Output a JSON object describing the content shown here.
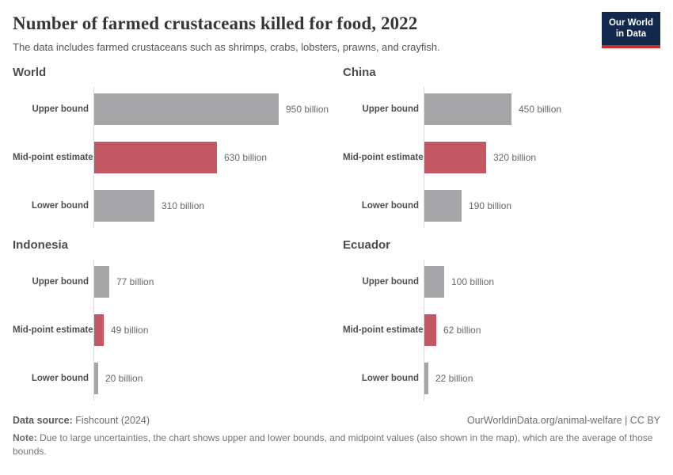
{
  "header": {
    "title": "Number of farmed crustaceans killed for food, 2022",
    "subtitle": "The data includes farmed crustaceans such as shrimps, crabs, lobsters, prawns, and crayfish.",
    "logo_line1": "Our World",
    "logo_line2": "in Data"
  },
  "chart_data": {
    "type": "bar",
    "orientation": "horizontal",
    "unit": "billion",
    "x_max": 950,
    "grid": false,
    "legend": false,
    "categories": [
      "Upper bound",
      "Mid-point estimate",
      "Lower bound"
    ],
    "bar_colors": {
      "bound": "#a5a5a8",
      "midpoint": "#c25864"
    },
    "panels": [
      {
        "title": "World",
        "values": [
          950,
          630,
          310
        ],
        "labels": [
          "950 billion",
          "630 billion",
          "310 billion"
        ]
      },
      {
        "title": "China",
        "values": [
          450,
          320,
          190
        ],
        "labels": [
          "450 billion",
          "320 billion",
          "190 billion"
        ]
      },
      {
        "title": "Indonesia",
        "values": [
          77,
          49,
          20
        ],
        "labels": [
          "77 billion",
          "49 billion",
          "20 billion"
        ]
      },
      {
        "title": "Ecuador",
        "values": [
          100,
          62,
          22
        ],
        "labels": [
          "100 billion",
          "62 billion",
          "22 billion"
        ]
      }
    ]
  },
  "footer": {
    "datasource_label": "Data source:",
    "datasource_value": " Fishcount (2024)",
    "rights": "OurWorldinData.org/animal-welfare | CC BY",
    "note_label": "Note:",
    "note_text": " Due to large uncertainties, the chart shows upper and lower bounds, and midpoint values (also shown in the map), which are the average of those bounds."
  }
}
